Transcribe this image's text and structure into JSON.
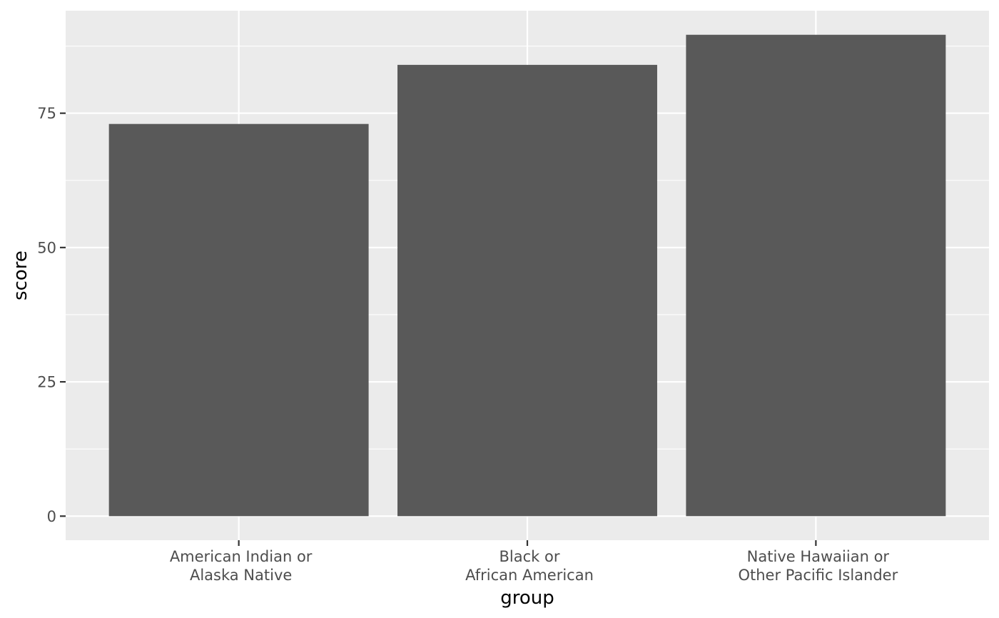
{
  "chart_data": {
    "type": "bar",
    "categories": [
      [
        "American Indian or",
        "Alaska Native"
      ],
      [
        "Black or",
        "African American"
      ],
      [
        "Native Hawaiian or",
        "Other Pacific Islander"
      ]
    ],
    "values": [
      73,
      84,
      89.6
    ],
    "title": "",
    "xlabel": "group",
    "ylabel": "score",
    "ylim": [
      -4.48,
      94.08
    ],
    "yticks": [
      0,
      25,
      50,
      75
    ],
    "ytick_labels": [
      "0",
      "25",
      "50",
      "75"
    ],
    "grid": true,
    "colors": {
      "panel": "#EBEBEB",
      "grid": "#FFFFFF",
      "bar": "#595959",
      "tick_text": "#4D4D4D",
      "tick_mark": "#333333",
      "title_text": "#000000"
    }
  }
}
